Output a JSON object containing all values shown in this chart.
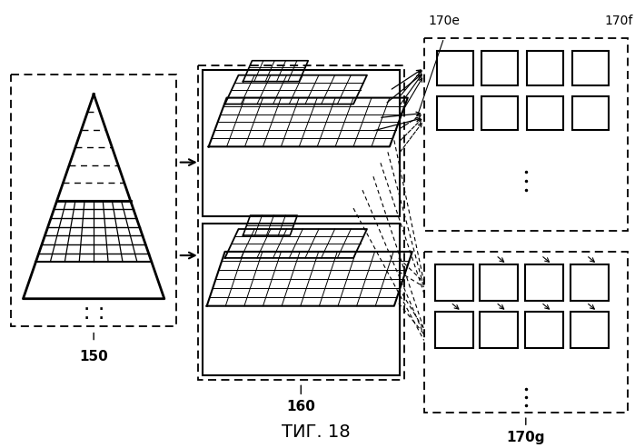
{
  "bg_color": "#ffffff",
  "title": "ΤИГ. 18",
  "label_150": "150",
  "label_160": "160",
  "label_170e": "170e",
  "label_170f": "170f",
  "label_170g": "170g"
}
